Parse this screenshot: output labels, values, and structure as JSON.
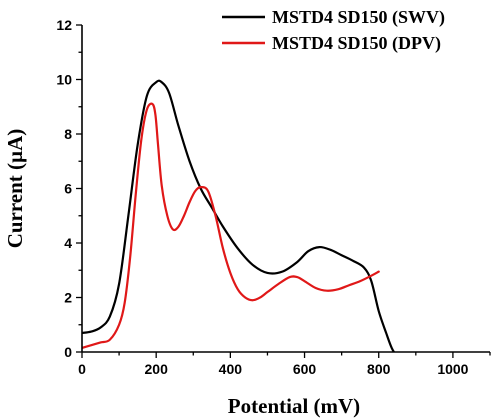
{
  "chart_data": {
    "type": "line",
    "xlabel": "Potential (mV)",
    "ylabel": "Current (µA)",
    "xlim": [
      0,
      1100
    ],
    "ylim": [
      0,
      12
    ],
    "xticks": [
      0,
      200,
      400,
      600,
      800,
      1000
    ],
    "yticks": [
      0,
      2,
      4,
      6,
      8,
      10,
      12
    ],
    "legend_position": "top-right",
    "series": [
      {
        "name": "MSTD4 SD150 (SWV)",
        "color": "#000000",
        "x": [
          0,
          25,
          50,
          75,
          100,
          125,
          150,
          175,
          200,
          215,
          235,
          260,
          290,
          320,
          350,
          380,
          420,
          460,
          500,
          540,
          580,
          610,
          640,
          670,
          700,
          730,
          760,
          780,
          800,
          820,
          835,
          850
        ],
        "y": [
          0.7,
          0.75,
          0.9,
          1.3,
          2.5,
          5.0,
          7.6,
          9.4,
          9.9,
          9.9,
          9.5,
          8.3,
          7.0,
          6.0,
          5.3,
          4.6,
          3.8,
          3.2,
          2.9,
          2.95,
          3.3,
          3.7,
          3.85,
          3.75,
          3.55,
          3.35,
          3.1,
          2.6,
          1.5,
          0.7,
          0.15,
          -0.2
        ]
      },
      {
        "name": "MSTD4 SD150 (DPV)",
        "color": "#e01818",
        "x": [
          0,
          25,
          50,
          75,
          100,
          115,
          130,
          145,
          160,
          175,
          190,
          198,
          205,
          215,
          230,
          245,
          260,
          275,
          290,
          305,
          320,
          340,
          360,
          380,
          400,
          420,
          440,
          460,
          480,
          500,
          530,
          560,
          580,
          600,
          630,
          660,
          690,
          720,
          750,
          780,
          800
        ],
        "y": [
          0.15,
          0.25,
          0.35,
          0.45,
          1.0,
          1.8,
          3.5,
          5.8,
          7.8,
          8.9,
          9.1,
          8.7,
          7.6,
          6.1,
          5.0,
          4.5,
          4.6,
          5.0,
          5.5,
          5.9,
          6.05,
          5.9,
          5.0,
          3.8,
          2.9,
          2.3,
          2.0,
          1.9,
          2.0,
          2.2,
          2.5,
          2.75,
          2.75,
          2.6,
          2.35,
          2.25,
          2.3,
          2.45,
          2.6,
          2.8,
          2.95
        ]
      }
    ]
  }
}
